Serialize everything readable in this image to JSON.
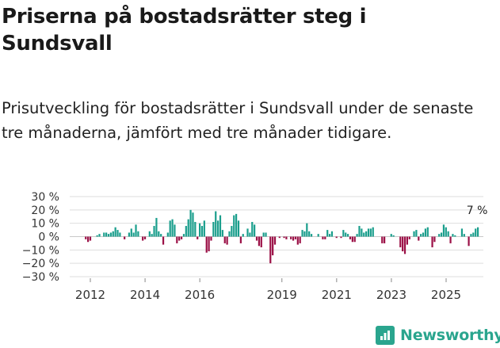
{
  "title": "Priserna på bostadsrätter steg i Sundsvall",
  "subtitle": "Prisutveckling för bostadsrätter i Sundsvall under de senaste tre månaderna, jämfört med tre månader tidigare.",
  "brand": {
    "name": "Newsworthy",
    "icon": "bar-chart-icon"
  },
  "colors": {
    "positive": "#1a9e8c",
    "negative": "#9b1046",
    "grid": "#dedede",
    "brand": "#2aa58e"
  },
  "chart_data": {
    "type": "bar",
    "title": "Priserna på bostadsrätter steg i Sundsvall",
    "xlabel": "",
    "ylabel": "",
    "ylim": [
      -30,
      30
    ],
    "yticks": [
      30,
      20,
      10,
      0,
      -10,
      -20,
      -30
    ],
    "ytick_labels": [
      "30 %",
      "20 %",
      "10 %",
      "0 %",
      "−10 %",
      "−20 %",
      "−30 %"
    ],
    "x_start": 2011.5,
    "x_step": 0.0833,
    "xticks": [
      2012,
      2014,
      2016,
      2019,
      2021,
      2023,
      2025
    ],
    "xtick_labels": [
      "2012",
      "2014",
      "2016",
      "2019",
      "2021",
      "2023",
      "2025"
    ],
    "values": [
      0,
      0,
      0,
      0,
      -2,
      -4,
      -3,
      0,
      0,
      1,
      2,
      0,
      3,
      3,
      2,
      3,
      4,
      7,
      5,
      3,
      0,
      -2,
      0,
      3,
      6,
      3,
      9,
      4,
      0,
      -3,
      -2,
      0,
      4,
      2,
      8,
      14,
      4,
      2,
      -6,
      0,
      3,
      12,
      13,
      9,
      -5,
      -3,
      -2,
      2,
      8,
      13,
      20,
      18,
      11,
      -2,
      10,
      8,
      12,
      -12,
      -11,
      -3,
      11,
      19,
      12,
      16,
      5,
      -5,
      -6,
      4,
      8,
      16,
      17,
      12,
      -5,
      2,
      0,
      6,
      3,
      11,
      9,
      -3,
      -7,
      -8,
      3,
      3,
      0,
      -20,
      -14,
      -6,
      0,
      -1,
      0,
      -1,
      -2,
      0,
      -2,
      -3,
      -2,
      -6,
      -5,
      5,
      4,
      10,
      4,
      2,
      0,
      0,
      2,
      0,
      -2,
      -2,
      5,
      2,
      4,
      0,
      -1,
      0,
      -1,
      5,
      3,
      2,
      -2,
      -4,
      -4,
      2,
      8,
      6,
      3,
      4,
      6,
      6,
      7,
      0,
      0,
      0,
      -5,
      -5,
      0,
      0,
      2,
      1,
      0,
      0,
      -8,
      -11,
      -13,
      -6,
      -2,
      0,
      4,
      5,
      -3,
      2,
      3,
      6,
      7,
      0,
      -8,
      -4,
      0,
      2,
      3,
      9,
      7,
      4,
      -5,
      2,
      1,
      0,
      0,
      6,
      2,
      0,
      -7,
      2,
      3,
      6,
      7
    ],
    "annotations": [
      {
        "text": "7 %",
        "anchor": "last-bar"
      }
    ]
  }
}
